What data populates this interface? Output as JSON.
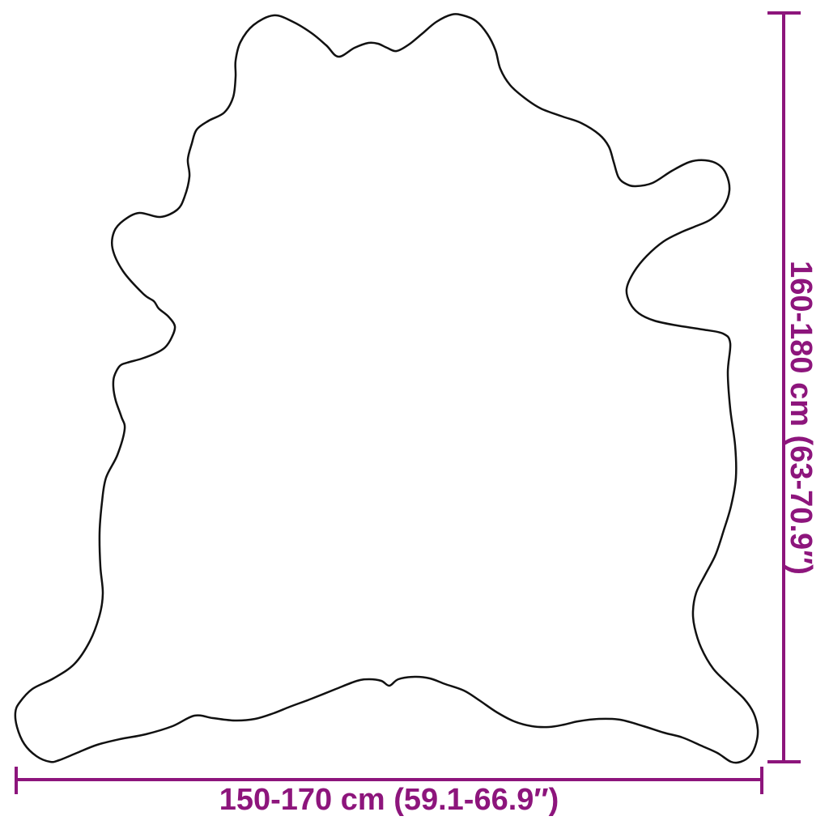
{
  "diagram": {
    "subject": "cowhide-rug-outline",
    "width_label": "150-170 cm (59.1-66.9″)",
    "height_label": "160-180 cm (63-70.9″)"
  },
  "colors": {
    "dimension_accent": "#8d157c",
    "outline": "#111111",
    "background": "#ffffff"
  }
}
